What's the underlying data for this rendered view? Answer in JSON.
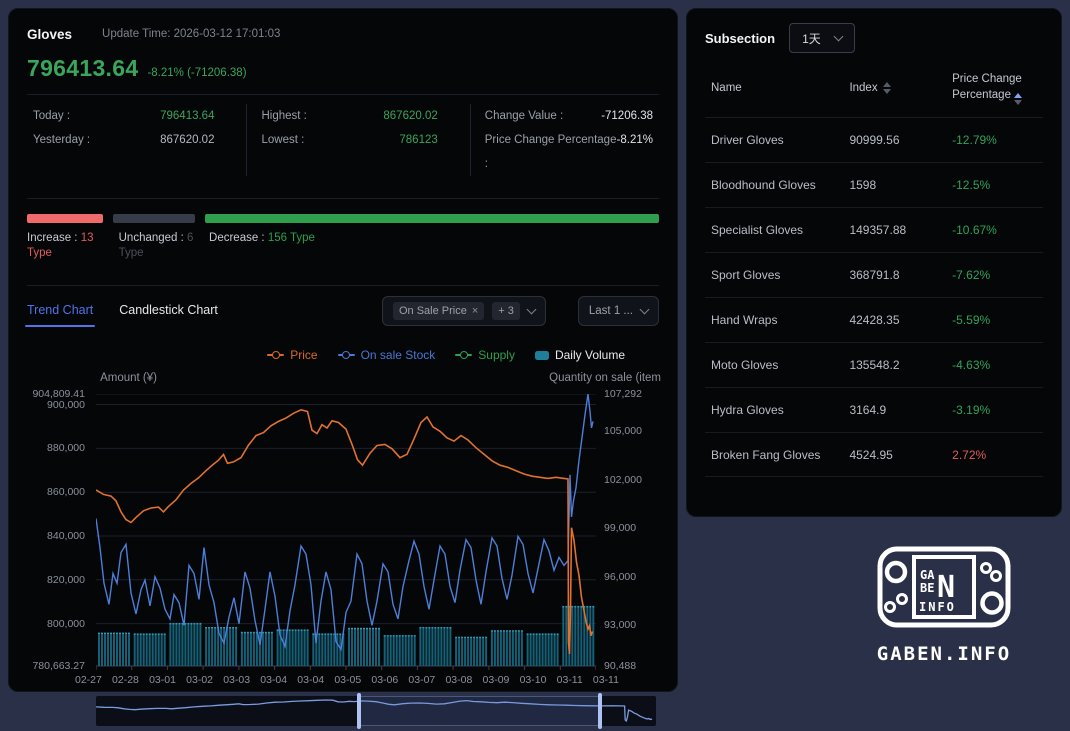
{
  "left_panel": {
    "title": "Gloves",
    "update_time": "Update Time: 2026-03-12 17:01:03",
    "current_index": "796413.64",
    "change_text": "-8.21% (-71206.38)",
    "stats": {
      "today_label": "Today :",
      "today_value": "796413.64",
      "yesterday_label": "Yesterday :",
      "yesterday_value": "867620.02",
      "highest_label": "Highest :",
      "highest_value": "867620.02",
      "lowest_label": "Lowest :",
      "lowest_value": "786123",
      "change_value_label": "Change Value :",
      "change_value": "-71206.38",
      "pct_label": "Price Change Percentage :",
      "pct_value": "-8.21%"
    },
    "ratio": {
      "increase_label": "Increase : ",
      "increase_value": "13 Type",
      "unchanged_label": "Unchanged : ",
      "unchanged_value": "6 Type",
      "decrease_label": "Decrease : ",
      "decrease_value": "156 Type",
      "colors": {
        "increase": "#ef6a6a",
        "unchanged": "#363c49",
        "decrease": "#2f9e4e"
      },
      "widths_pct": [
        12,
        13,
        71
      ]
    },
    "tabs": [
      {
        "label": "Trend Chart",
        "active": true
      },
      {
        "label": "Candlestick Chart",
        "active": false
      }
    ],
    "filters": {
      "selected_tag": "On Sale Price",
      "remove_icon": "×",
      "more_count": "+ 3",
      "range": "Last 1 ..."
    }
  },
  "chart_data": {
    "type": "line",
    "subtype": "dual-axis line + volume bars with navigator",
    "legend": [
      {
        "label": "Price",
        "color": "#d96a2c",
        "symbol": "line"
      },
      {
        "label": "On sale Stock",
        "color": "#4a77cf",
        "symbol": "line"
      },
      {
        "label": "Supply",
        "color": "#2f9e4e",
        "symbol": "line"
      },
      {
        "label": "Daily Volume",
        "color": "#1f7f9b",
        "symbol": "rect",
        "text_color": "#e8eaee"
      }
    ],
    "y_left": {
      "title": "Amount (¥)",
      "min": 780663.27,
      "max": 904809.41,
      "ticks": [
        {
          "label": "904,809.41",
          "value": 904809.41
        },
        {
          "label": "900,000",
          "value": 900000
        },
        {
          "label": "880,000",
          "value": 880000
        },
        {
          "label": "860,000",
          "value": 860000
        },
        {
          "label": "840,000",
          "value": 840000
        },
        {
          "label": "820,000",
          "value": 820000
        },
        {
          "label": "800,000",
          "value": 800000
        },
        {
          "label": "780,663.27",
          "value": 780663.27
        }
      ]
    },
    "y_right": {
      "title": "Quantity on sale (item",
      "min": 90488,
      "max": 107292,
      "ticks": [
        {
          "label": "107,292",
          "value": 107292
        },
        {
          "label": "105,000",
          "value": 105000
        },
        {
          "label": "102,000",
          "value": 102000
        },
        {
          "label": "99,000",
          "value": 99000
        },
        {
          "label": "96,000",
          "value": 96000
        },
        {
          "label": "93,000",
          "value": 93000
        },
        {
          "label": "90,488",
          "value": 90488
        }
      ]
    },
    "x_labels": [
      "02-27",
      "02-28",
      "03-01",
      "03-02",
      "03-03",
      "03-04",
      "03-04",
      "03-05",
      "03-06",
      "03-07",
      "03-08",
      "03-09",
      "03-10",
      "03-11",
      "03-11"
    ],
    "series": {
      "price": {
        "name": "Price",
        "axis": "left",
        "color": "#e0712e",
        "points": [
          [
            0,
            861000
          ],
          [
            1.5,
            859000
          ],
          [
            3,
            858200
          ],
          [
            4,
            856000
          ],
          [
            5,
            851000
          ],
          [
            6,
            847500
          ],
          [
            7,
            846200
          ],
          [
            8,
            848500
          ],
          [
            9.5,
            851500
          ],
          [
            11,
            852800
          ],
          [
            12.5,
            853200
          ],
          [
            13.5,
            851000
          ],
          [
            14.5,
            853500
          ],
          [
            16,
            856500
          ],
          [
            17.5,
            861000
          ],
          [
            19,
            864000
          ],
          [
            20.5,
            866500
          ],
          [
            22,
            869800
          ],
          [
            23.5,
            872800
          ],
          [
            24.5,
            874600
          ],
          [
            25.5,
            877200
          ],
          [
            26.3,
            873200
          ],
          [
            27.5,
            873800
          ],
          [
            29,
            875800
          ],
          [
            30.5,
            881500
          ],
          [
            32,
            885800
          ],
          [
            33.5,
            887200
          ],
          [
            35,
            890300
          ],
          [
            36.5,
            892300
          ],
          [
            38,
            893800
          ],
          [
            39.5,
            896000
          ],
          [
            41,
            897600
          ],
          [
            42.3,
            896800
          ],
          [
            43.2,
            888300
          ],
          [
            44.2,
            886800
          ],
          [
            45.2,
            890800
          ],
          [
            46.2,
            889300
          ],
          [
            47.2,
            892600
          ],
          [
            48.5,
            891800
          ],
          [
            50,
            888800
          ],
          [
            51.2,
            881800
          ],
          [
            52.3,
            874800
          ],
          [
            53.3,
            872300
          ],
          [
            54.8,
            877800
          ],
          [
            56.2,
            881300
          ],
          [
            57.8,
            881800
          ],
          [
            59.2,
            879800
          ],
          [
            60.8,
            875800
          ],
          [
            62.2,
            877300
          ],
          [
            63.6,
            884300
          ],
          [
            65,
            891800
          ],
          [
            66.2,
            894300
          ],
          [
            67.4,
            889800
          ],
          [
            68.8,
            887800
          ],
          [
            70.2,
            884800
          ],
          [
            71.6,
            883300
          ],
          [
            73,
            885800
          ],
          [
            74.4,
            883800
          ],
          [
            76,
            880300
          ],
          [
            77.6,
            877300
          ],
          [
            79.2,
            874300
          ],
          [
            80.8,
            872300
          ],
          [
            82.4,
            871300
          ],
          [
            84,
            869800
          ],
          [
            85.6,
            868300
          ],
          [
            87.2,
            867300
          ],
          [
            88.8,
            866800
          ],
          [
            90.4,
            866300
          ],
          [
            92,
            866800
          ],
          [
            93.6,
            866300
          ],
          [
            94.4,
            866000
          ],
          [
            94.5,
            791500
          ],
          [
            94.7,
            786123
          ],
          [
            94.9,
            806000
          ],
          [
            95.1,
            843800
          ],
          [
            95.6,
            838000
          ],
          [
            96.1,
            828000
          ],
          [
            96.6,
            822000
          ],
          [
            97.1,
            812000
          ],
          [
            97.6,
            806000
          ],
          [
            98,
            801000
          ],
          [
            98.4,
            797500
          ],
          [
            98.7,
            799000
          ],
          [
            99,
            794500
          ],
          [
            99.3,
            796413.64
          ]
        ]
      },
      "stock": {
        "name": "On sale Stock",
        "axis": "right",
        "color": "#4d7ed8",
        "points": [
          [
            0,
            99600
          ],
          [
            0.8,
            97800
          ],
          [
            1.6,
            95600
          ],
          [
            2.6,
            94300
          ],
          [
            3.4,
            96200
          ],
          [
            4.2,
            95600
          ],
          [
            5,
            97500
          ],
          [
            6,
            98000
          ],
          [
            7,
            95000
          ],
          [
            8,
            93700
          ],
          [
            9,
            95200
          ],
          [
            9.8,
            95800
          ],
          [
            10.8,
            94200
          ],
          [
            11.8,
            96000
          ],
          [
            12.8,
            95300
          ],
          [
            13.8,
            94000
          ],
          [
            14.8,
            93400
          ],
          [
            15.6,
            94900
          ],
          [
            16.6,
            94400
          ],
          [
            17.6,
            93000
          ],
          [
            18.6,
            96700
          ],
          [
            19.6,
            96200
          ],
          [
            20.6,
            94600
          ],
          [
            21.6,
            97800
          ],
          [
            22.6,
            95500
          ],
          [
            23.6,
            94400
          ],
          [
            24.6,
            92500
          ],
          [
            25.6,
            91900
          ],
          [
            26.6,
            93500
          ],
          [
            27.6,
            94700
          ],
          [
            28.6,
            93100
          ],
          [
            29.8,
            96300
          ],
          [
            30.8,
            95300
          ],
          [
            31.8,
            93300
          ],
          [
            32.8,
            91800
          ],
          [
            33.8,
            94000
          ],
          [
            34.8,
            96300
          ],
          [
            35.8,
            94800
          ],
          [
            36.8,
            92400
          ],
          [
            37.8,
            91700
          ],
          [
            38.8,
            93900
          ],
          [
            39.8,
            95500
          ],
          [
            41,
            97900
          ],
          [
            42,
            97400
          ],
          [
            43,
            95500
          ],
          [
            44,
            91900
          ],
          [
            45,
            94500
          ],
          [
            46,
            96300
          ],
          [
            47,
            95200
          ],
          [
            48,
            92000
          ],
          [
            49,
            91500
          ],
          [
            50,
            93800
          ],
          [
            51,
            94500
          ],
          [
            52.2,
            97400
          ],
          [
            53.2,
            96800
          ],
          [
            54.2,
            94500
          ],
          [
            55.2,
            93000
          ],
          [
            56.2,
            94500
          ],
          [
            57.4,
            96800
          ],
          [
            58.4,
            96300
          ],
          [
            59.4,
            94300
          ],
          [
            60.4,
            93400
          ],
          [
            61.4,
            95400
          ],
          [
            62.6,
            97000
          ],
          [
            63.6,
            98200
          ],
          [
            64.6,
            97400
          ],
          [
            65.6,
            95400
          ],
          [
            66.6,
            94000
          ],
          [
            67.6,
            95800
          ],
          [
            68.8,
            97900
          ],
          [
            69.8,
            97400
          ],
          [
            70.8,
            95400
          ],
          [
            71.8,
            94400
          ],
          [
            72.8,
            96400
          ],
          [
            74,
            98300
          ],
          [
            75,
            97800
          ],
          [
            76,
            95800
          ],
          [
            77,
            94300
          ],
          [
            78,
            96300
          ],
          [
            79.2,
            98400
          ],
          [
            80.2,
            97900
          ],
          [
            81.2,
            95900
          ],
          [
            82.2,
            94600
          ],
          [
            83.2,
            96100
          ],
          [
            84.4,
            98500
          ],
          [
            85.4,
            98000
          ],
          [
            86.4,
            96200
          ],
          [
            87.4,
            95000
          ],
          [
            88.4,
            96500
          ],
          [
            89.6,
            98300
          ],
          [
            90.6,
            97600
          ],
          [
            91.6,
            96400
          ],
          [
            92.6,
            97200
          ],
          [
            93.6,
            96700
          ],
          [
            94.4,
            97000
          ],
          [
            94.8,
            102300
          ],
          [
            95.1,
            99700
          ],
          [
            95.5,
            100700
          ],
          [
            96,
            101500
          ],
          [
            96.6,
            103200
          ],
          [
            97.2,
            104600
          ],
          [
            97.8,
            106000
          ],
          [
            98.4,
            107292
          ],
          [
            98.8,
            106200
          ],
          [
            99.1,
            105200
          ],
          [
            99.4,
            105600
          ]
        ]
      },
      "volume": {
        "name": "Daily Volume",
        "axis": "right",
        "color": "#136077",
        "cap_color": "#2e99b8",
        "baseline": 90488,
        "day_levels": [
          92550,
          92500,
          93150,
          92900,
          92600,
          92750,
          92500,
          92850,
          92400,
          92900,
          92300,
          92700,
          92500,
          94204
        ]
      }
    },
    "grid": true,
    "brush": {
      "start": 0.47,
      "end": 0.9,
      "line_color": "#7b9ce0",
      "handle_color": "#aec3f2"
    }
  },
  "subsection": {
    "title": "Subsection",
    "period": "1天",
    "columns": [
      "Name",
      "Index",
      "Price Change Percentage"
    ],
    "rows": [
      {
        "name": "Driver Gloves",
        "index": "90999.56",
        "pct": "-12.79%"
      },
      {
        "name": "Bloodhound Gloves",
        "index": "1598",
        "pct": "-12.5%"
      },
      {
        "name": "Specialist Gloves",
        "index": "149357.88",
        "pct": "-10.67%"
      },
      {
        "name": "Sport Gloves",
        "index": "368791.8",
        "pct": "-7.62%"
      },
      {
        "name": "Hand Wraps",
        "index": "42428.35",
        "pct": "-5.59%"
      },
      {
        "name": "Moto Gloves",
        "index": "135548.2",
        "pct": "-4.63%"
      },
      {
        "name": "Hydra Gloves",
        "index": "3164.9",
        "pct": "-3.19%"
      },
      {
        "name": "Broken Fang Gloves",
        "index": "4524.95",
        "pct": "2.72%"
      }
    ],
    "pct_colors": {
      "down": "#2fa35a",
      "up": "#e05c5c"
    }
  },
  "logo": {
    "text": "GABEN.INFO",
    "screen_lines": [
      "GA",
      "BE",
      "N",
      "INFO"
    ]
  }
}
